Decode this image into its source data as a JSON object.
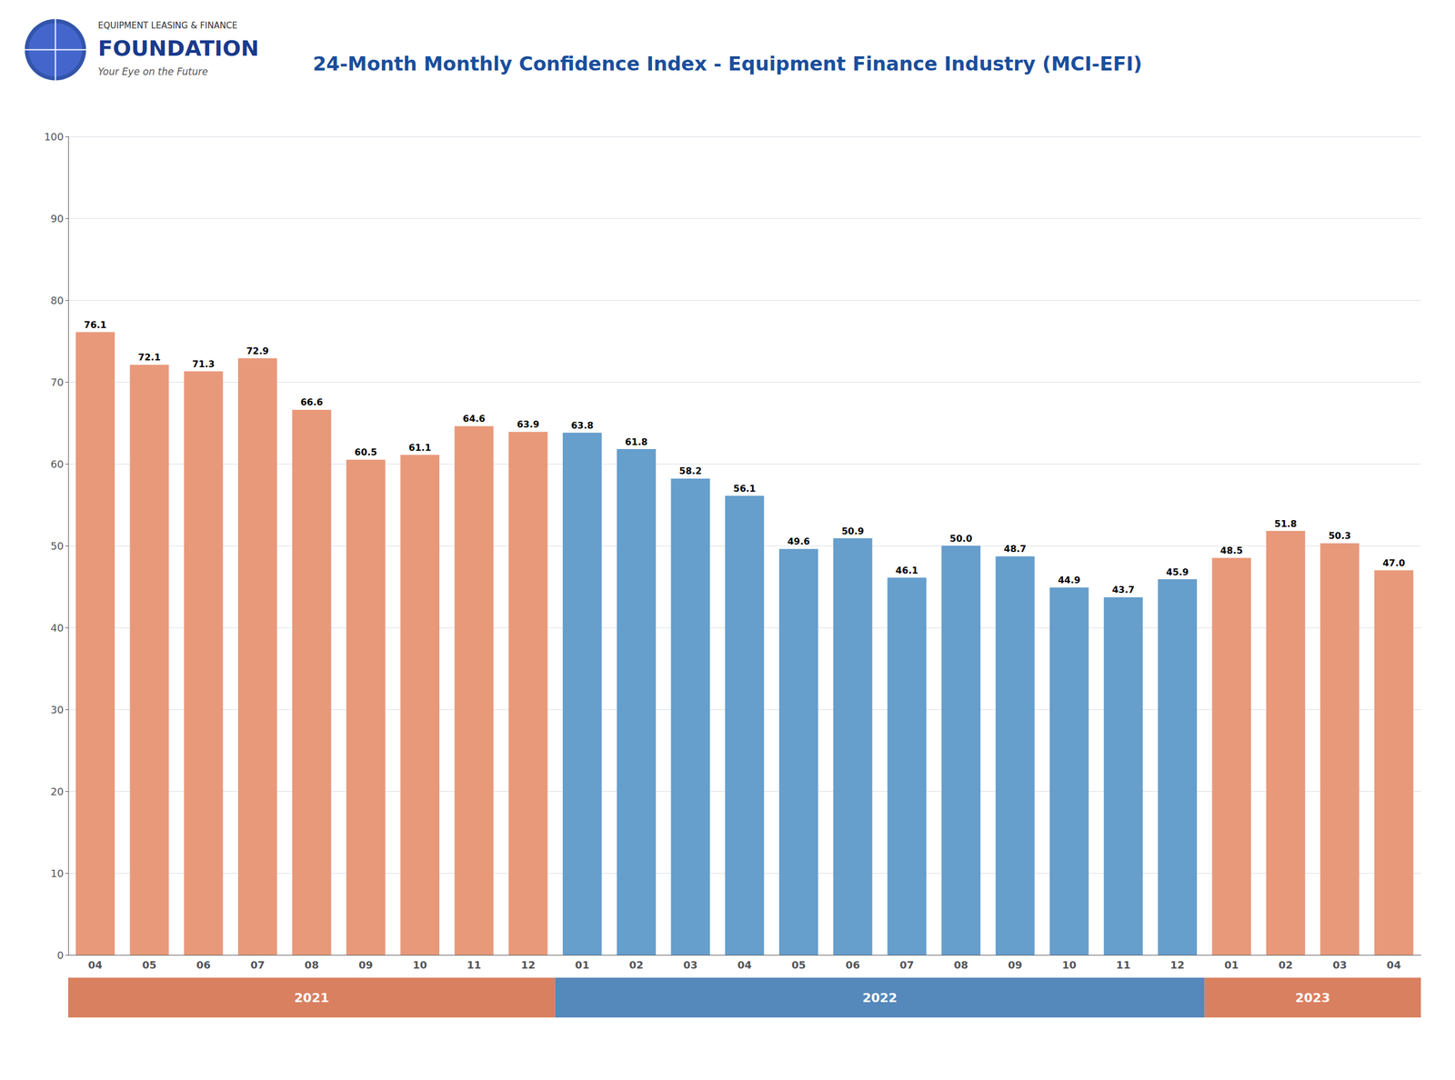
{
  "chart_data": {
    "type": "bar",
    "title": "24-Month Monthly Confidence Index - Equipment Finance Industry (MCI-EFI)",
    "annotations": [
      "EQUIPMENT LEASING & FINANCE",
      "FOUNDATION",
      "Your Eye on the Future"
    ],
    "categories": [
      "04",
      "05",
      "06",
      "07",
      "08",
      "09",
      "10",
      "11",
      "12",
      "01",
      "02",
      "03",
      "04",
      "05",
      "06",
      "07",
      "08",
      "09",
      "10",
      "11",
      "12",
      "01",
      "02",
      "03",
      "04"
    ],
    "values": [
      76.1,
      72.1,
      71.3,
      72.9,
      66.6,
      60.5,
      61.1,
      64.6,
      63.9,
      63.8,
      61.8,
      58.2,
      56.1,
      49.6,
      50.9,
      46.1,
      50.0,
      48.7,
      44.9,
      43.7,
      45.9,
      48.5,
      51.8,
      50.3,
      47.0
    ],
    "value_labels": [
      "76.1",
      "72.1",
      "71.3",
      "72.9",
      "66.6",
      "60.5",
      "61.1",
      "64.6",
      "63.9",
      "63.8",
      "61.8",
      "58.2",
      "56.1",
      "49.6",
      "50.9",
      "46.1",
      "50.0",
      "48.7",
      "44.9",
      "43.7",
      "45.9",
      "48.5",
      "51.8",
      "50.3",
      "47.0"
    ],
    "colors": [
      "#E8997A",
      "#E8997A",
      "#E8997A",
      "#E8997A",
      "#E8997A",
      "#E8997A",
      "#E8997A",
      "#E8997A",
      "#E8997A",
      "#669ECC",
      "#669ECC",
      "#669ECC",
      "#669ECC",
      "#669ECC",
      "#669ECC",
      "#669ECC",
      "#669ECC",
      "#669ECC",
      "#669ECC",
      "#669ECC",
      "#669ECC",
      "#E8997A",
      "#E8997A",
      "#E8997A",
      "#E8997A"
    ],
    "year_bands": [
      {
        "label": "2021",
        "start": 0,
        "end": 8,
        "color": "#D98060"
      },
      {
        "label": "2022",
        "start": 9,
        "end": 20,
        "color": "#5588BB"
      },
      {
        "label": "2023",
        "start": 21,
        "end": 24,
        "color": "#D98060"
      }
    ],
    "ylim": [
      0,
      100
    ],
    "yticks": [
      0,
      10,
      20,
      30,
      40,
      50,
      60,
      70,
      80,
      90,
      100
    ],
    "grid": true,
    "data_labels": true,
    "title_color": "#1A4E9C"
  }
}
